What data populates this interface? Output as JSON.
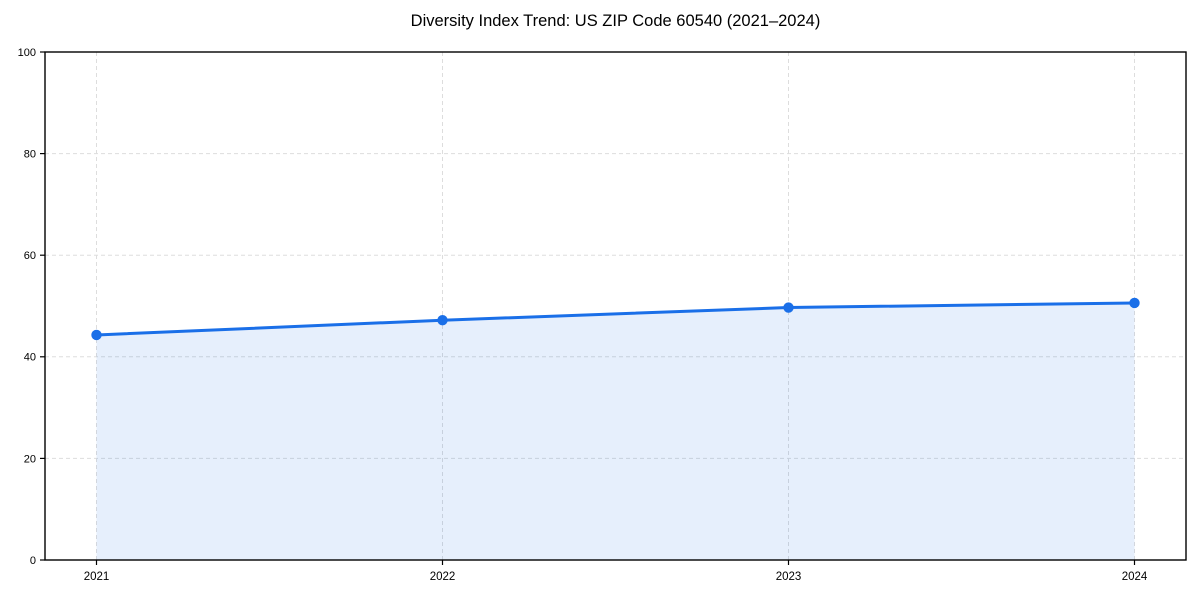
{
  "title": "Diversity Index Trend: US ZIP Code 60540 (2021–2024)",
  "chart_data": {
    "type": "area",
    "title": "Diversity Index Trend: US ZIP Code 60540 (2021–2024)",
    "categories": [
      "2021",
      "2022",
      "2023",
      "2024"
    ],
    "values": [
      44.3,
      47.2,
      49.7,
      50.6
    ],
    "series_name": "Diversity Index",
    "xlabel": "",
    "ylabel": "",
    "ylim": [
      0,
      100
    ],
    "yticks": [
      0,
      20,
      40,
      60,
      80,
      100
    ],
    "grid": "dashed",
    "legend": "none",
    "colors": {
      "line": "#1a6fe8",
      "marker": "#1a6fe8",
      "fill": "rgba(26,111,232,0.11)",
      "grid": "#dddddd",
      "spine": "#000000",
      "tick_text": "#000000",
      "background": "#ffffff"
    }
  }
}
